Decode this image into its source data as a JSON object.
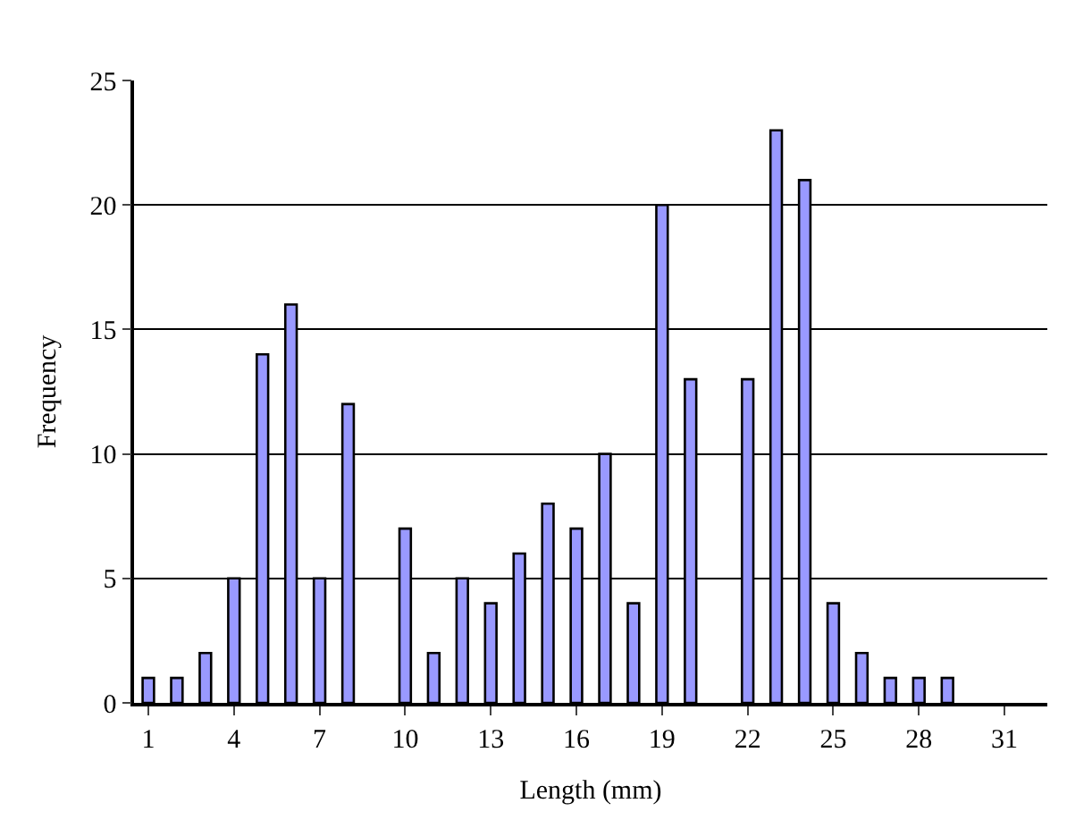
{
  "chart_data": {
    "type": "bar",
    "xlabel": "Length (mm)",
    "ylabel": "Frequency",
    "categories": [
      "1",
      null,
      null,
      "4",
      null,
      null,
      "7",
      null,
      null,
      "10",
      null,
      null,
      "13",
      null,
      null,
      "16",
      null,
      null,
      "19",
      null,
      null,
      "22",
      null,
      null,
      "25",
      null,
      null,
      "28",
      null,
      null,
      "31",
      null
    ],
    "values": [
      1,
      1,
      2,
      5,
      14,
      16,
      5,
      12,
      0,
      7,
      2,
      5,
      4,
      6,
      8,
      7,
      10,
      4,
      20,
      13,
      0,
      13,
      23,
      21,
      4,
      2,
      1,
      1,
      1,
      0,
      0,
      0
    ],
    "color": "#9999ff",
    "ylim": [
      0,
      25
    ],
    "yticks": [
      0,
      5,
      10,
      15,
      20,
      25
    ],
    "grid": "y"
  }
}
